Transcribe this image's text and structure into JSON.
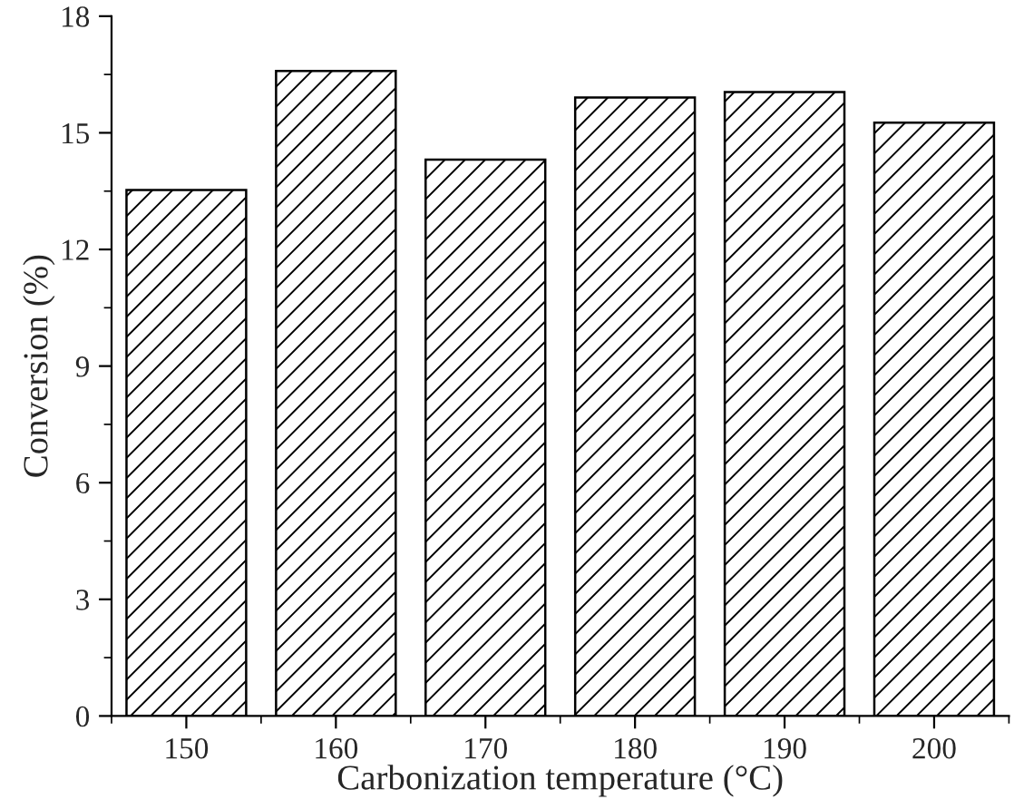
{
  "chart_data": {
    "type": "bar",
    "xlabel": "Carbonization temperature (°C)",
    "ylabel": "Conversion (%)",
    "categories": [
      "150",
      "160",
      "170",
      "180",
      "190",
      "200"
    ],
    "values": [
      13.53,
      16.59,
      14.31,
      15.91,
      16.05,
      15.26
    ],
    "color": "#000000",
    "ylim": [
      0,
      18
    ],
    "yticks": [
      0,
      3,
      6,
      9,
      12,
      15,
      18
    ],
    "grid": false
  }
}
